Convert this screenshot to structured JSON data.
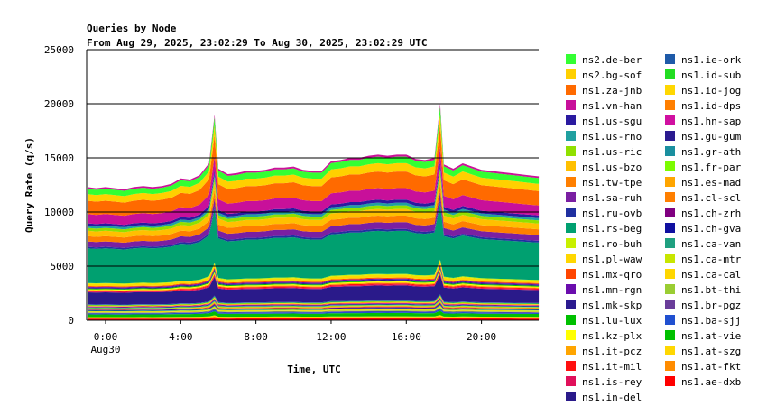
{
  "chart_data": {
    "type": "area",
    "stacked": true,
    "title": "Queries by Node",
    "subtitle": "From Aug 29, 2025, 23:02:29 To Aug 30, 2025, 23:02:29 UTC",
    "xlabel": "Time, UTC",
    "ylabel": "Query Rate (q/s)",
    "ylim": [
      0,
      25000
    ],
    "y_ticks": [
      "0",
      "5000",
      "10000",
      "15000",
      "20000",
      "25000"
    ],
    "x_ticks": [
      "0:00",
      "4:00",
      "8:00",
      "12:00",
      "16:00",
      "20:00"
    ],
    "x_subtick": "Aug30",
    "grid": "horizontal",
    "legend_position": "right",
    "x_hours": [
      -0.96,
      -0.5,
      0,
      0.5,
      1,
      1.5,
      2,
      2.5,
      3,
      3.5,
      4,
      4.5,
      5,
      5.5,
      5.8,
      6,
      6.5,
      7,
      7.5,
      8,
      8.5,
      9,
      9.5,
      10,
      10.5,
      11,
      11.5,
      12,
      12.5,
      13,
      13.5,
      14,
      14.5,
      15,
      15.5,
      16,
      16.5,
      17,
      17.5,
      17.8,
      18,
      18.5,
      19,
      19.5,
      20,
      20.5,
      21,
      21.5,
      22,
      22.5,
      23,
      23.05
    ],
    "total_values": [
      12300,
      12200,
      12300,
      12200,
      12100,
      12300,
      12400,
      12300,
      12400,
      12600,
      13100,
      13000,
      13400,
      14500,
      19000,
      14000,
      13500,
      13600,
      13800,
      13800,
      13900,
      14100,
      14100,
      14200,
      13900,
      13800,
      13800,
      14700,
      14800,
      15000,
      15000,
      15200,
      15300,
      15200,
      15300,
      15300,
      14900,
      14800,
      15000,
      20000,
      14400,
      14000,
      14500,
      14200,
      13900,
      13800,
      13700,
      13600,
      13500,
      13400,
      13300,
      13300
    ],
    "series": [
      {
        "name": "ns1.ae-dxb",
        "color": "#ff0000",
        "fraction": 0.012
      },
      {
        "name": "ns1.at-fkt",
        "color": "#ff8c00",
        "fraction": 0.006
      },
      {
        "name": "ns1.at-szg",
        "color": "#ffd700",
        "fraction": 0.006
      },
      {
        "name": "ns1.at-vie",
        "color": "#00c000",
        "fraction": 0.02
      },
      {
        "name": "ns1.ba-sjj",
        "color": "#2050d0",
        "fraction": 0.008
      },
      {
        "name": "ns1.br-pgz",
        "color": "#6a3d9a",
        "fraction": 0.004
      },
      {
        "name": "ns1.bt-thi",
        "color": "#9acd32",
        "fraction": 0.004
      },
      {
        "name": "ns1.ca-cal",
        "color": "#ffd700",
        "fraction": 0.004
      },
      {
        "name": "ns1.ca-mtr",
        "color": "#c8e600",
        "fraction": 0.004
      },
      {
        "name": "ns1.ca-van",
        "color": "#20a080",
        "fraction": 0.004
      },
      {
        "name": "ns1.ch-gva",
        "color": "#1010a0",
        "fraction": 0.004
      },
      {
        "name": "ns1.ch-zrh",
        "color": "#800080",
        "fraction": 0.004
      },
      {
        "name": "ns1.cl-scl",
        "color": "#ff7f00",
        "fraction": 0.004
      },
      {
        "name": "ns1.es-mad",
        "color": "#ffa500",
        "fraction": 0.004
      },
      {
        "name": "ns1.fr-par",
        "color": "#7cfc00",
        "fraction": 0.004
      },
      {
        "name": "ns1.gr-ath",
        "color": "#1a8f9f",
        "fraction": 0.004
      },
      {
        "name": "ns1.gu-gum",
        "color": "#2b1a8f",
        "fraction": 0.004
      },
      {
        "name": "ns1.hn-sap",
        "color": "#d010a0",
        "fraction": 0.004
      },
      {
        "name": "ns1.id-dps",
        "color": "#ff7f00",
        "fraction": 0.004
      },
      {
        "name": "ns1.id-jog",
        "color": "#ffd700",
        "fraction": 0.004
      },
      {
        "name": "ns1.id-sub",
        "color": "#22dd22",
        "fraction": 0.004
      },
      {
        "name": "ns1.ie-ork",
        "color": "#1e5aa8",
        "fraction": 0.004
      },
      {
        "name": "ns1.in-del",
        "color": "#2a1a8a",
        "fraction": 0.09
      },
      {
        "name": "ns1.is-rey",
        "color": "#e0105a",
        "fraction": 0.006
      },
      {
        "name": "ns1.it-mil",
        "color": "#ff1010",
        "fraction": 0.006
      },
      {
        "name": "ns1.it-pcz",
        "color": "#ffa500",
        "fraction": 0.006
      },
      {
        "name": "ns1.kz-plx",
        "color": "#ffff00",
        "fraction": 0.006
      },
      {
        "name": "ns1.lu-lux",
        "color": "#00c000",
        "fraction": 0.006
      },
      {
        "name": "ns1.mk-skp",
        "color": "#2b1a8f",
        "fraction": 0.006
      },
      {
        "name": "ns1.mm-rgn",
        "color": "#6a0dad",
        "fraction": 0.006
      },
      {
        "name": "ns1.mx-qro",
        "color": "#ff4500",
        "fraction": 0.006
      },
      {
        "name": "ns1.pl-waw",
        "color": "#ffd700",
        "fraction": 0.016
      },
      {
        "name": "ns1.ro-buh",
        "color": "#c8f000",
        "fraction": 0.006
      },
      {
        "name": "ns1.rs-beg",
        "color": "#00a070",
        "fraction": 0.26
      },
      {
        "name": "ns1.ru-ovb",
        "color": "#2030a0",
        "fraction": 0.012
      },
      {
        "name": "ns1.sa-ruh",
        "color": "#7a1fa2",
        "fraction": 0.04
      },
      {
        "name": "ns1.tw-tpe",
        "color": "#ff7f00",
        "fraction": 0.04
      },
      {
        "name": "ns1.us-bzo",
        "color": "#ffc000",
        "fraction": 0.04
      },
      {
        "name": "ns1.us-ric",
        "color": "#90e000",
        "fraction": 0.022
      },
      {
        "name": "ns1.us-rno",
        "color": "#20a0a0",
        "fraction": 0.016
      },
      {
        "name": "ns1.us-sgu",
        "color": "#2a1aa0",
        "fraction": 0.018
      },
      {
        "name": "ns1.vn-han",
        "color": "#c8109a",
        "fraction": 0.07
      },
      {
        "name": "ns1.za-jnb",
        "color": "#ff6a00",
        "fraction": 0.1
      },
      {
        "name": "ns2.bg-sof",
        "color": "#ffd000",
        "fraction": 0.05
      },
      {
        "name": "ns2.de-ber",
        "color": "#33ff33",
        "fraction": 0.04
      }
    ],
    "legend_col1": [
      "ns2.de-ber",
      "ns2.bg-sof",
      "ns1.za-jnb",
      "ns1.vn-han",
      "ns1.us-sgu",
      "ns1.us-rno",
      "ns1.us-ric",
      "ns1.us-bzo",
      "ns1.tw-tpe",
      "ns1.sa-ruh",
      "ns1.ru-ovb",
      "ns1.rs-beg",
      "ns1.ro-buh",
      "ns1.pl-waw",
      "ns1.mx-qro",
      "ns1.mm-rgn",
      "ns1.mk-skp",
      "ns1.lu-lux",
      "ns1.kz-plx",
      "ns1.it-pcz",
      "ns1.it-mil",
      "ns1.is-rey",
      "ns1.in-del"
    ],
    "legend_col2": [
      "ns1.ie-ork",
      "ns1.id-sub",
      "ns1.id-jog",
      "ns1.id-dps",
      "ns1.hn-sap",
      "ns1.gu-gum",
      "ns1.gr-ath",
      "ns1.fr-par",
      "ns1.es-mad",
      "ns1.cl-scl",
      "ns1.ch-zrh",
      "ns1.ch-gva",
      "ns1.ca-van",
      "ns1.ca-mtr",
      "ns1.ca-cal",
      "ns1.bt-thi",
      "ns1.br-pgz",
      "ns1.ba-sjj",
      "ns1.at-vie",
      "ns1.at-szg",
      "ns1.at-fkt",
      "ns1.ae-dxb"
    ]
  }
}
